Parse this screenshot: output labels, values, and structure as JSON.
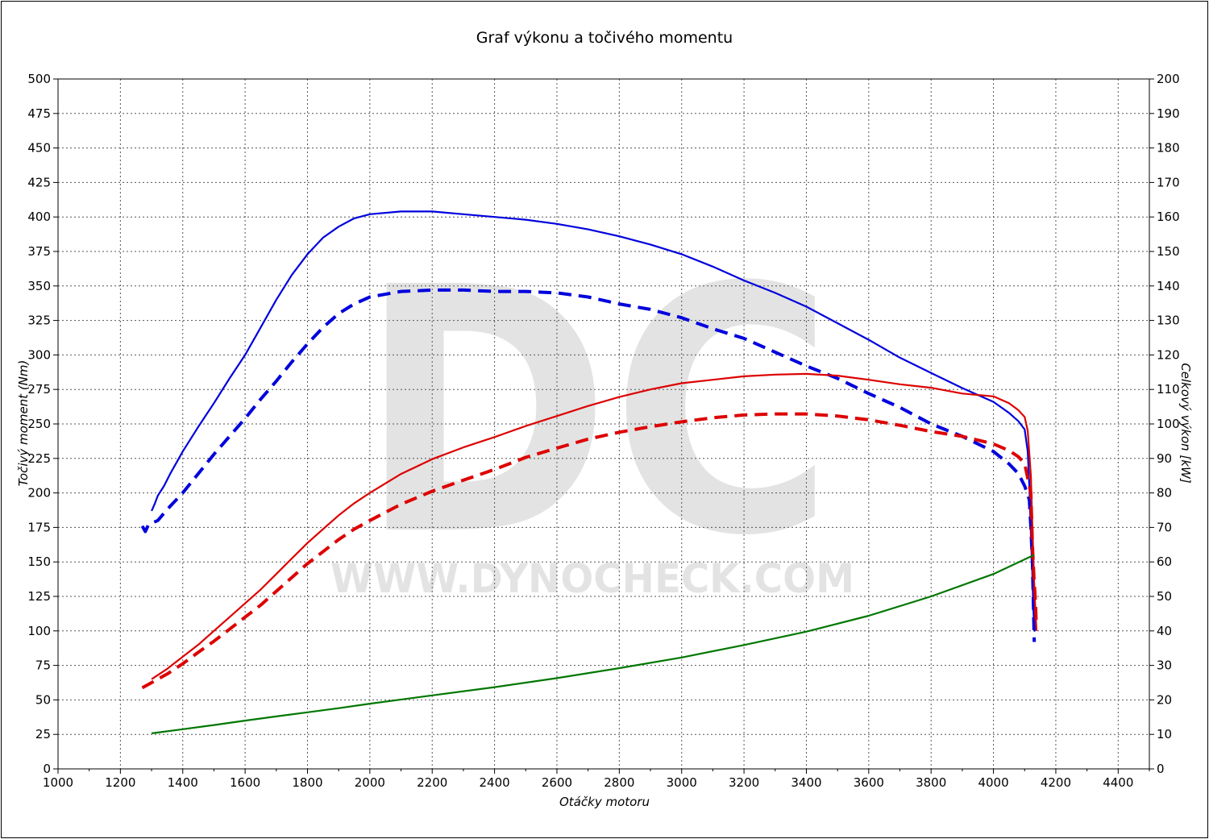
{
  "watermark": {
    "logo": "DC",
    "url": "WWW.DYNOCHECK.COM"
  },
  "chart_data": {
    "type": "line",
    "title": "Graf výkonu a točivého momentu",
    "xlabel": "Otáčky motoru",
    "ylabel_left": "Točivý moment (Nm)",
    "ylabel_right": "Celkový výkon [kW]",
    "xlim": [
      1000,
      4500
    ],
    "ylim_left": [
      0,
      500
    ],
    "ylim_right": [
      0,
      200
    ],
    "x_ticks": [
      "1000",
      "1200",
      "1400",
      "1600",
      "1800",
      "2000",
      "2200",
      "2400",
      "2600",
      "2800",
      "3000",
      "3200",
      "3400",
      "3600",
      "3800",
      "4000",
      "4200",
      "4400"
    ],
    "y_left_ticks": [
      "0",
      "25",
      "50",
      "75",
      "100",
      "125",
      "150",
      "175",
      "200",
      "225",
      "250",
      "275",
      "300",
      "325",
      "350",
      "375",
      "400",
      "425",
      "450",
      "475",
      "500"
    ],
    "y_right_ticks": [
      "0",
      "10",
      "20",
      "30",
      "40",
      "50",
      "60",
      "70",
      "80",
      "90",
      "100",
      "110",
      "120",
      "130",
      "140",
      "150",
      "160",
      "170",
      "180",
      "190",
      "200"
    ],
    "grid": true,
    "series": [
      {
        "color": "#0000dd",
        "style": "solid",
        "axis": "left",
        "points": [
          [
            1300,
            187
          ],
          [
            1310,
            192
          ],
          [
            1320,
            198
          ],
          [
            1340,
            205
          ],
          [
            1360,
            214
          ],
          [
            1380,
            222
          ],
          [
            1400,
            230
          ],
          [
            1450,
            248
          ],
          [
            1500,
            265
          ],
          [
            1550,
            283
          ],
          [
            1600,
            300
          ],
          [
            1650,
            320
          ],
          [
            1700,
            340
          ],
          [
            1750,
            358
          ],
          [
            1800,
            373
          ],
          [
            1850,
            385
          ],
          [
            1900,
            393
          ],
          [
            1950,
            399
          ],
          [
            2000,
            402
          ],
          [
            2100,
            404
          ],
          [
            2200,
            404
          ],
          [
            2300,
            402
          ],
          [
            2400,
            400
          ],
          [
            2500,
            398
          ],
          [
            2600,
            395
          ],
          [
            2700,
            391
          ],
          [
            2800,
            386
          ],
          [
            2900,
            380
          ],
          [
            3000,
            373
          ],
          [
            3100,
            364
          ],
          [
            3200,
            354
          ],
          [
            3300,
            345
          ],
          [
            3400,
            335
          ],
          [
            3500,
            323
          ],
          [
            3600,
            311
          ],
          [
            3700,
            298
          ],
          [
            3800,
            287
          ],
          [
            3900,
            276
          ],
          [
            4000,
            266
          ],
          [
            4050,
            258
          ],
          [
            4080,
            252
          ],
          [
            4100,
            246
          ],
          [
            4110,
            230
          ],
          [
            4115,
            205
          ],
          [
            4120,
            170
          ],
          [
            4125,
            140
          ],
          [
            4128,
            115
          ],
          [
            4132,
            100
          ],
          [
            4134,
            112
          ]
        ]
      },
      {
        "color": "#0000dd",
        "style": "dashed",
        "axis": "left",
        "points": [
          [
            1270,
            176
          ],
          [
            1280,
            172
          ],
          [
            1290,
            177
          ],
          [
            1320,
            180
          ],
          [
            1350,
            188
          ],
          [
            1400,
            200
          ],
          [
            1450,
            214
          ],
          [
            1500,
            228
          ],
          [
            1550,
            241
          ],
          [
            1600,
            254
          ],
          [
            1650,
            268
          ],
          [
            1700,
            281
          ],
          [
            1750,
            295
          ],
          [
            1800,
            308
          ],
          [
            1850,
            320
          ],
          [
            1900,
            330
          ],
          [
            1950,
            337
          ],
          [
            2000,
            342
          ],
          [
            2100,
            346
          ],
          [
            2200,
            347
          ],
          [
            2300,
            347
          ],
          [
            2400,
            346
          ],
          [
            2500,
            346
          ],
          [
            2600,
            345
          ],
          [
            2700,
            342
          ],
          [
            2800,
            337
          ],
          [
            2900,
            333
          ],
          [
            3000,
            327
          ],
          [
            3100,
            319
          ],
          [
            3200,
            312
          ],
          [
            3300,
            302
          ],
          [
            3400,
            292
          ],
          [
            3500,
            283
          ],
          [
            3600,
            272
          ],
          [
            3700,
            262
          ],
          [
            3800,
            250
          ],
          [
            3900,
            241
          ],
          [
            4000,
            230
          ],
          [
            4050,
            221
          ],
          [
            4080,
            214
          ],
          [
            4100,
            205
          ],
          [
            4115,
            195
          ],
          [
            4120,
            175
          ],
          [
            4125,
            150
          ],
          [
            4128,
            120
          ],
          [
            4131,
            92
          ]
        ]
      },
      {
        "color": "#dd0000",
        "style": "solid",
        "axis": "right",
        "points": [
          [
            1300,
            26
          ],
          [
            1350,
            29
          ],
          [
            1400,
            32.5
          ],
          [
            1450,
            36
          ],
          [
            1500,
            40
          ],
          [
            1550,
            44
          ],
          [
            1600,
            48
          ],
          [
            1650,
            52
          ],
          [
            1700,
            56.5
          ],
          [
            1750,
            61
          ],
          [
            1800,
            65.5
          ],
          [
            1850,
            69.5
          ],
          [
            1900,
            73.5
          ],
          [
            1950,
            77
          ],
          [
            2000,
            80
          ],
          [
            2100,
            85.5
          ],
          [
            2200,
            89.8
          ],
          [
            2300,
            93.2
          ],
          [
            2400,
            96.2
          ],
          [
            2500,
            99.4
          ],
          [
            2600,
            102.3
          ],
          [
            2700,
            105.2
          ],
          [
            2800,
            107.8
          ],
          [
            2900,
            110
          ],
          [
            3000,
            111.8
          ],
          [
            3100,
            112.8
          ],
          [
            3200,
            113.8
          ],
          [
            3300,
            114.3
          ],
          [
            3400,
            114.5
          ],
          [
            3500,
            114
          ],
          [
            3600,
            112.8
          ],
          [
            3700,
            111.5
          ],
          [
            3800,
            110.5
          ],
          [
            3900,
            108.8
          ],
          [
            4000,
            108
          ],
          [
            4050,
            106
          ],
          [
            4080,
            104
          ],
          [
            4100,
            102
          ],
          [
            4110,
            98
          ],
          [
            4120,
            85
          ],
          [
            4125,
            70
          ],
          [
            4130,
            55
          ],
          [
            4135,
            45
          ],
          [
            4138,
            40
          ]
        ]
      },
      {
        "color": "#dd0000",
        "style": "dashed",
        "axis": "right",
        "points": [
          [
            1270,
            23.5
          ],
          [
            1300,
            25
          ],
          [
            1350,
            27.5
          ],
          [
            1400,
            30.5
          ],
          [
            1450,
            33.8
          ],
          [
            1500,
            37
          ],
          [
            1550,
            40.5
          ],
          [
            1600,
            44
          ],
          [
            1650,
            47.5
          ],
          [
            1700,
            51.5
          ],
          [
            1750,
            55.5
          ],
          [
            1800,
            59.5
          ],
          [
            1850,
            63
          ],
          [
            1900,
            66.5
          ],
          [
            1950,
            69.5
          ],
          [
            2000,
            72
          ],
          [
            2100,
            76.7
          ],
          [
            2200,
            80.5
          ],
          [
            2300,
            83.7
          ],
          [
            2400,
            86.8
          ],
          [
            2500,
            90.3
          ],
          [
            2600,
            93
          ],
          [
            2700,
            95.6
          ],
          [
            2800,
            97.6
          ],
          [
            2900,
            99.2
          ],
          [
            3000,
            100.6
          ],
          [
            3100,
            101.8
          ],
          [
            3200,
            102.6
          ],
          [
            3300,
            102.9
          ],
          [
            3400,
            102.9
          ],
          [
            3500,
            102.3
          ],
          [
            3600,
            101.2
          ],
          [
            3700,
            99.6
          ],
          [
            3800,
            97.8
          ],
          [
            3900,
            96.4
          ],
          [
            4000,
            94.2
          ],
          [
            4050,
            92.3
          ],
          [
            4080,
            90.5
          ],
          [
            4100,
            88.5
          ],
          [
            4120,
            80
          ],
          [
            4125,
            65
          ],
          [
            4130,
            55
          ],
          [
            4135,
            48
          ],
          [
            4137,
            42
          ]
        ]
      },
      {
        "color": "#007700",
        "style": "solid",
        "axis": "right",
        "points": [
          [
            1300,
            10.3
          ],
          [
            1400,
            11.5
          ],
          [
            1500,
            12.7
          ],
          [
            1600,
            14
          ],
          [
            1700,
            15.2
          ],
          [
            1800,
            16.4
          ],
          [
            1900,
            17.6
          ],
          [
            2000,
            18.9
          ],
          [
            2200,
            21.3
          ],
          [
            2400,
            23.7
          ],
          [
            2600,
            26.3
          ],
          [
            2800,
            29.2
          ],
          [
            3000,
            32.3
          ],
          [
            3200,
            35.9
          ],
          [
            3400,
            39.8
          ],
          [
            3600,
            44.4
          ],
          [
            3800,
            50
          ],
          [
            4000,
            56.5
          ],
          [
            4130,
            62
          ]
        ]
      }
    ]
  }
}
